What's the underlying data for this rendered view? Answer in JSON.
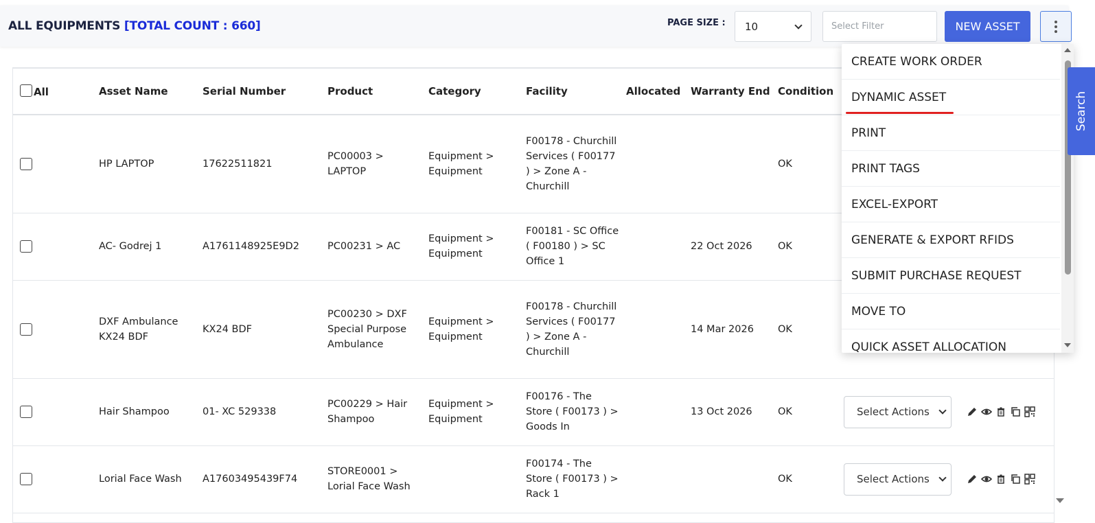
{
  "header": {
    "title": "ALL EQUIPMENTS",
    "total_count": "[TOTAL COUNT : 660]",
    "page_size_label": "PAGE SIZE :",
    "page_size_value": "10",
    "filter_placeholder": "Select Filter",
    "new_asset_label": "NEW ASSET"
  },
  "menu": {
    "items": [
      {
        "label": "CREATE WORK ORDER"
      },
      {
        "label": "DYNAMIC ASSET"
      },
      {
        "label": "PRINT"
      },
      {
        "label": "PRINT TAGS"
      },
      {
        "label": "EXCEL-EXPORT"
      },
      {
        "label": "GENERATE & EXPORT RFIDS"
      },
      {
        "label": "SUBMIT PURCHASE REQUEST"
      },
      {
        "label": "MOVE TO"
      },
      {
        "label": "QUICK ASSET ALLOCATION"
      }
    ]
  },
  "search_tab": "Search",
  "table": {
    "headers": {
      "all": "All",
      "asset_name": "Asset Name",
      "serial_number": "Serial Number",
      "product": "Product",
      "category": "Category",
      "facility": "Facility",
      "allocated": "Allocated",
      "warranty_end": "Warranty End",
      "condition": "Condition"
    },
    "select_actions_label": "Select Actions",
    "rows": [
      {
        "asset_name": "HP LAPTOP",
        "serial": "17622511821",
        "product": "PC00003 > LAPTOP",
        "category": "Equipment > Equipment",
        "facility": "F00178 - Churchill Services ( F00177 ) > Zone A - Churchill",
        "allocated": "",
        "warranty_end": "",
        "condition": "OK"
      },
      {
        "asset_name": "AC- Godrej 1",
        "serial": "A1761148925E9D2",
        "product": "PC00231 > AC",
        "category": "Equipment > Equipment",
        "facility": "F00181 - SC Office ( F00180 ) > SC Office 1",
        "allocated": "",
        "warranty_end": "22 Oct 2026",
        "condition": "OK"
      },
      {
        "asset_name": "DXF Ambulance KX24 BDF",
        "serial": "KX24 BDF",
        "product": "PC00230 > DXF Special Purpose Ambulance",
        "category": "Equipment > Equipment",
        "facility": "F00178 - Churchill Services ( F00177 ) > Zone A - Churchill",
        "allocated": "",
        "warranty_end": "14 Mar 2026",
        "condition": "OK"
      },
      {
        "asset_name": "Hair Shampoo",
        "serial": "01- XC 529338",
        "product": "PC00229 > Hair Shampoo",
        "category": "Equipment > Equipment",
        "facility": "F00176 - The Store ( F00173 ) > Goods In",
        "allocated": "",
        "warranty_end": "13 Oct 2026",
        "condition": "OK"
      },
      {
        "asset_name": "Lorial Face Wash",
        "serial": "A17603495439F74",
        "product": "STORE0001 > Lorial Face Wash",
        "category": "",
        "facility": "F00174 - The Store ( F00173 ) > Rack 1",
        "allocated": "",
        "warranty_end": "",
        "condition": "OK"
      }
    ]
  }
}
